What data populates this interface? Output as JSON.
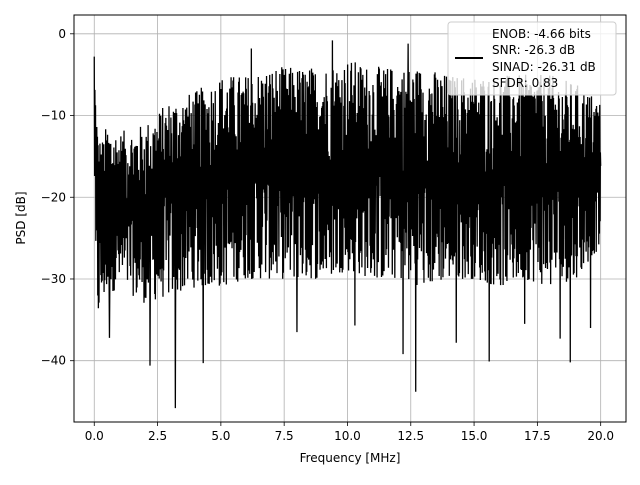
{
  "chart_data": {
    "type": "line",
    "xlabel": "Frequency [MHz]",
    "ylabel": "PSD [dB]",
    "xlim": [
      -0.8,
      21.0
    ],
    "ylim": [
      -47.5,
      2.3
    ],
    "x_ticks": [
      0.0,
      2.5,
      5.0,
      7.5,
      10.0,
      12.5,
      15.0,
      17.5,
      20.0
    ],
    "x_tick_labels": [
      "0.0",
      "2.5",
      "5.0",
      "7.5",
      "10.0",
      "12.5",
      "15.0",
      "17.5",
      "20.0"
    ],
    "y_ticks": [
      0,
      -10,
      -20,
      -30,
      -40
    ],
    "y_tick_labels": [
      "0",
      "−10",
      "−20",
      "−30",
      "−40"
    ],
    "grid": true,
    "legend_position": "top-right",
    "legend": [
      "ENOB: -4.66 bits",
      "SNR: -26.3 dB",
      "SINAD: -26.31 dB",
      "SFDR: 0.83"
    ],
    "series": [
      {
        "color": "#000000",
        "x_range": [
          0.0,
          20.0
        ],
        "envelope": {
          "x": [
            0.0,
            0.05,
            0.15,
            0.3,
            0.5,
            1.0,
            2.0,
            3.0,
            4.0,
            5.0,
            6.0,
            7.0,
            8.0,
            9.0,
            10.0,
            11.0,
            12.0,
            13.0,
            14.0,
            15.0,
            16.0,
            17.0,
            18.0,
            19.0,
            20.0
          ],
          "upper": [
            -3.0,
            -5.5,
            -12.0,
            -13.0,
            -11.0,
            -12.0,
            -11.0,
            -8.0,
            -7.0,
            -5.0,
            -5.0,
            -4.0,
            -4.0,
            -4.0,
            -3.0,
            -4.0,
            -4.0,
            -4.0,
            -5.0,
            -5.0,
            -5.0,
            -5.0,
            -5.0,
            -6.0,
            -8.0
          ],
          "lower": [
            -14.0,
            -34.0,
            -35.0,
            -33.0,
            -32.0,
            -31.0,
            -33.0,
            -32.0,
            -31.0,
            -31.0,
            -30.0,
            -30.0,
            -30.0,
            -30.0,
            -29.0,
            -30.0,
            -30.0,
            -31.0,
            -30.0,
            -30.0,
            -31.0,
            -30.0,
            -31.0,
            -30.0,
            -26.0
          ]
        },
        "spikes": [
          {
            "x": 0.0,
            "y": -2.8
          },
          {
            "x": 0.6,
            "y": -37.2
          },
          {
            "x": 2.2,
            "y": -40.6
          },
          {
            "x": 3.2,
            "y": -45.8
          },
          {
            "x": 4.3,
            "y": -40.3
          },
          {
            "x": 12.7,
            "y": -43.8
          },
          {
            "x": 15.6,
            "y": -40.1
          },
          {
            "x": 18.8,
            "y": -40.2
          },
          {
            "x": 6.2,
            "y": -1.8
          },
          {
            "x": 9.4,
            "y": -0.8
          },
          {
            "x": 12.4,
            "y": -1.2
          },
          {
            "x": 8.0,
            "y": -36.5
          },
          {
            "x": 10.3,
            "y": -35.7
          },
          {
            "x": 12.2,
            "y": -39.2
          },
          {
            "x": 14.3,
            "y": -37.8
          },
          {
            "x": 18.4,
            "y": -37.3
          },
          {
            "x": 17.0,
            "y": -35.5
          },
          {
            "x": 19.6,
            "y": -36.0
          }
        ]
      }
    ]
  }
}
